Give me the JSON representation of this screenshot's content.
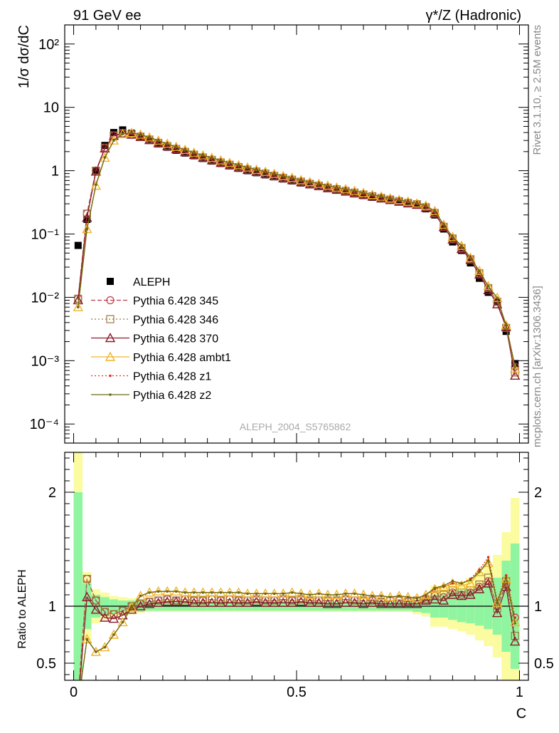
{
  "header": {
    "left": "91 GeV ee",
    "right": "γ*/Z (Hadronic)"
  },
  "side_text": {
    "rivet": "Rivet 3.1.10, ≥ 2.5M events",
    "site": "mcplots.cern.ch [arXiv:1306.3436]"
  },
  "watermark": "ALEPH_2004_S5765862",
  "colors": {
    "data": "#000000",
    "p345": "#c0394b",
    "p346": "#9b7a3c",
    "p370": "#8b1a2b",
    "ambt1": "#f0b429",
    "z1": "#e03020",
    "z2": "#6b6b10",
    "band_inner": "#90f5a0",
    "band_outer": "#fbfba0"
  },
  "chart_data": [
    {
      "type": "line",
      "panel": "main",
      "ylabel": "1/σ  dσ/dC",
      "yscale": "log",
      "ylim": [
        5e-05,
        200
      ],
      "xlim": [
        -0.02,
        1.02
      ],
      "ytick_labels": [
        "10⁻⁴",
        "10⁻³",
        "10⁻²",
        "10⁻¹",
        "1",
        "10",
        "10²"
      ],
      "legend_position": "center-left",
      "legend": [
        {
          "label": "ALEPH",
          "key": "data",
          "marker": "square",
          "line": "none"
        },
        {
          "label": "Pythia 6.428 345",
          "key": "p345",
          "marker": "circle",
          "line": "dashed"
        },
        {
          "label": "Pythia 6.428 346",
          "key": "p346",
          "marker": "square-open",
          "line": "dotted"
        },
        {
          "label": "Pythia 6.428 370",
          "key": "p370",
          "marker": "triangle",
          "line": "solid"
        },
        {
          "label": "Pythia 6.428 ambt1",
          "key": "ambt1",
          "marker": "triangle",
          "line": "solid"
        },
        {
          "label": "Pythia 6.428 z1",
          "key": "z1",
          "marker": "dot",
          "line": "dotted"
        },
        {
          "label": "Pythia 6.428 z2",
          "key": "z2",
          "marker": "dot",
          "line": "solid"
        }
      ],
      "x": [
        0.01,
        0.03,
        0.05,
        0.07,
        0.09,
        0.11,
        0.13,
        0.15,
        0.17,
        0.19,
        0.21,
        0.23,
        0.25,
        0.27,
        0.29,
        0.31,
        0.33,
        0.35,
        0.37,
        0.39,
        0.41,
        0.43,
        0.45,
        0.47,
        0.49,
        0.51,
        0.53,
        0.55,
        0.57,
        0.59,
        0.61,
        0.63,
        0.65,
        0.67,
        0.69,
        0.71,
        0.73,
        0.75,
        0.77,
        0.79,
        0.81,
        0.83,
        0.85,
        0.87,
        0.89,
        0.91,
        0.93,
        0.95,
        0.97,
        0.99
      ],
      "data": [
        0.066,
        0.17,
        1.0,
        2.5,
        4.0,
        4.4,
        3.9,
        3.4,
        3.0,
        2.65,
        2.35,
        2.1,
        1.9,
        1.72,
        1.56,
        1.42,
        1.3,
        1.19,
        1.09,
        1.0,
        0.93,
        0.86,
        0.8,
        0.74,
        0.69,
        0.64,
        0.6,
        0.56,
        0.52,
        0.49,
        0.46,
        0.43,
        0.405,
        0.38,
        0.36,
        0.34,
        0.32,
        0.3,
        0.285,
        0.25,
        0.2,
        0.12,
        0.075,
        0.055,
        0.035,
        0.02,
        0.012,
        0.0085,
        0.0029,
        0.0009
      ],
      "series": [
        {
          "name": "Pythia 6.428 345",
          "key": "p345",
          "values": [
            0.0095,
            0.21,
            1.0,
            2.3,
            3.6,
            3.9,
            3.75,
            3.45,
            3.1,
            2.75,
            2.45,
            2.2,
            1.98,
            1.79,
            1.62,
            1.48,
            1.35,
            1.24,
            1.14,
            1.04,
            0.97,
            0.9,
            0.83,
            0.77,
            0.72,
            0.67,
            0.62,
            0.58,
            0.54,
            0.51,
            0.48,
            0.45,
            0.42,
            0.395,
            0.37,
            0.35,
            0.33,
            0.31,
            0.295,
            0.265,
            0.215,
            0.13,
            0.085,
            0.06,
            0.04,
            0.024,
            0.014,
            0.0085,
            0.0033,
            0.0008
          ]
        },
        {
          "name": "Pythia 6.428 346",
          "key": "p346",
          "values": [
            0.0095,
            0.21,
            1.0,
            2.3,
            3.6,
            3.9,
            3.75,
            3.45,
            3.1,
            2.75,
            2.45,
            2.2,
            1.98,
            1.79,
            1.62,
            1.48,
            1.35,
            1.24,
            1.14,
            1.04,
            0.97,
            0.9,
            0.83,
            0.77,
            0.72,
            0.67,
            0.62,
            0.58,
            0.54,
            0.51,
            0.48,
            0.45,
            0.42,
            0.395,
            0.37,
            0.35,
            0.33,
            0.31,
            0.295,
            0.265,
            0.215,
            0.13,
            0.085,
            0.06,
            0.04,
            0.024,
            0.014,
            0.0085,
            0.0033,
            0.00065
          ]
        },
        {
          "name": "Pythia 6.428 370",
          "key": "p370",
          "values": [
            0.009,
            0.18,
            0.97,
            2.25,
            3.55,
            3.85,
            3.7,
            3.4,
            3.05,
            2.72,
            2.43,
            2.18,
            1.96,
            1.77,
            1.6,
            1.46,
            1.33,
            1.22,
            1.12,
            1.03,
            0.96,
            0.89,
            0.82,
            0.76,
            0.71,
            0.66,
            0.61,
            0.57,
            0.53,
            0.5,
            0.47,
            0.44,
            0.415,
            0.39,
            0.365,
            0.345,
            0.325,
            0.305,
            0.29,
            0.26,
            0.21,
            0.128,
            0.082,
            0.058,
            0.039,
            0.023,
            0.013,
            0.0078,
            0.0034,
            0.00058
          ]
        },
        {
          "name": "Pythia 6.428 ambt1",
          "key": "ambt1",
          "values": [
            0.007,
            0.12,
            0.58,
            1.6,
            3.0,
            3.8,
            3.95,
            3.7,
            3.35,
            2.98,
            2.65,
            2.37,
            2.13,
            1.92,
            1.74,
            1.59,
            1.45,
            1.33,
            1.22,
            1.12,
            1.03,
            0.96,
            0.89,
            0.82,
            0.77,
            0.71,
            0.66,
            0.62,
            0.58,
            0.54,
            0.51,
            0.48,
            0.445,
            0.415,
            0.39,
            0.365,
            0.345,
            0.325,
            0.305,
            0.28,
            0.23,
            0.14,
            0.09,
            0.065,
            0.042,
            0.026,
            0.015,
            0.0098,
            0.0036,
            0.00075
          ]
        },
        {
          "name": "Pythia 6.428 z1",
          "key": "z1",
          "values": [
            0.007,
            0.12,
            0.6,
            1.62,
            3.0,
            3.8,
            3.95,
            3.7,
            3.35,
            2.98,
            2.65,
            2.37,
            2.13,
            1.92,
            1.74,
            1.59,
            1.45,
            1.33,
            1.22,
            1.12,
            1.03,
            0.96,
            0.89,
            0.82,
            0.77,
            0.71,
            0.66,
            0.62,
            0.58,
            0.54,
            0.51,
            0.48,
            0.445,
            0.415,
            0.39,
            0.365,
            0.345,
            0.325,
            0.305,
            0.28,
            0.23,
            0.14,
            0.09,
            0.065,
            0.042,
            0.026,
            0.015,
            0.0098,
            0.0036,
            0.0008
          ]
        },
        {
          "name": "Pythia 6.428 z2",
          "key": "z2",
          "values": [
            0.007,
            0.12,
            0.6,
            1.62,
            3.0,
            3.8,
            3.95,
            3.7,
            3.35,
            2.98,
            2.65,
            2.37,
            2.13,
            1.92,
            1.74,
            1.59,
            1.45,
            1.33,
            1.22,
            1.12,
            1.03,
            0.96,
            0.89,
            0.82,
            0.77,
            0.71,
            0.66,
            0.62,
            0.58,
            0.54,
            0.51,
            0.48,
            0.445,
            0.415,
            0.39,
            0.365,
            0.345,
            0.325,
            0.305,
            0.28,
            0.23,
            0.14,
            0.09,
            0.065,
            0.042,
            0.026,
            0.015,
            0.0098,
            0.0036,
            0.0008
          ]
        }
      ]
    },
    {
      "type": "line",
      "panel": "ratio",
      "xlabel": "C",
      "ylabel": "Ratio to ALEPH",
      "ylim": [
        0.35,
        2.35
      ],
      "xlim": [
        -0.02,
        1.02
      ],
      "ytick_labels": [
        "0.5",
        "1",
        "2"
      ],
      "xtick_labels": [
        "0",
        "0.5",
        "1"
      ],
      "reference": 1,
      "band_inner": [
        1.0,
        0.2,
        0.1,
        0.08,
        0.06,
        0.05,
        0.05,
        0.05,
        0.04,
        0.04,
        0.04,
        0.04,
        0.04,
        0.04,
        0.04,
        0.04,
        0.04,
        0.04,
        0.04,
        0.04,
        0.04,
        0.04,
        0.04,
        0.04,
        0.04,
        0.04,
        0.04,
        0.04,
        0.04,
        0.04,
        0.04,
        0.04,
        0.04,
        0.04,
        0.04,
        0.04,
        0.04,
        0.04,
        0.05,
        0.06,
        0.1,
        0.1,
        0.12,
        0.14,
        0.15,
        0.17,
        0.2,
        0.25,
        0.4,
        0.55
      ],
      "band_outer": [
        1.35,
        0.3,
        0.15,
        0.12,
        0.09,
        0.08,
        0.07,
        0.06,
        0.05,
        0.05,
        0.05,
        0.05,
        0.05,
        0.05,
        0.05,
        0.05,
        0.05,
        0.05,
        0.05,
        0.05,
        0.05,
        0.05,
        0.05,
        0.05,
        0.05,
        0.05,
        0.05,
        0.05,
        0.05,
        0.05,
        0.05,
        0.05,
        0.05,
        0.05,
        0.05,
        0.05,
        0.05,
        0.05,
        0.07,
        0.09,
        0.18,
        0.18,
        0.2,
        0.22,
        0.25,
        0.3,
        0.35,
        0.45,
        0.65,
        0.95
      ],
      "series": [
        {
          "name": "Pythia 6.428 345",
          "key": "p345",
          "values": [
            0.2,
            1.24,
            1.05,
            0.95,
            0.93,
            0.96,
            1.0,
            1.02,
            1.04,
            1.05,
            1.06,
            1.05,
            1.06,
            1.05,
            1.05,
            1.06,
            1.05,
            1.06,
            1.05,
            1.05,
            1.06,
            1.05,
            1.05,
            1.06,
            1.05,
            1.06,
            1.05,
            1.05,
            1.05,
            1.05,
            1.06,
            1.05,
            1.05,
            1.05,
            1.04,
            1.05,
            1.05,
            1.04,
            1.05,
            1.06,
            1.09,
            1.08,
            1.12,
            1.1,
            1.12,
            1.17,
            1.22,
            1.0,
            1.19,
            0.9
          ]
        },
        {
          "name": "Pythia 6.428 346",
          "key": "p346",
          "values": [
            0.2,
            1.24,
            1.05,
            0.95,
            0.93,
            0.96,
            1.0,
            1.02,
            1.04,
            1.05,
            1.06,
            1.05,
            1.06,
            1.05,
            1.05,
            1.06,
            1.05,
            1.06,
            1.05,
            1.05,
            1.06,
            1.05,
            1.05,
            1.06,
            1.05,
            1.06,
            1.05,
            1.05,
            1.05,
            1.05,
            1.06,
            1.05,
            1.05,
            1.05,
            1.04,
            1.05,
            1.05,
            1.04,
            1.05,
            1.06,
            1.1,
            1.1,
            1.14,
            1.12,
            1.14,
            1.19,
            1.25,
            0.98,
            1.22,
            0.74
          ]
        },
        {
          "name": "Pythia 6.428 370",
          "key": "p370",
          "values": [
            0.15,
            1.08,
            0.97,
            0.9,
            0.89,
            0.92,
            0.97,
            1.0,
            1.02,
            1.03,
            1.04,
            1.04,
            1.04,
            1.03,
            1.03,
            1.03,
            1.03,
            1.03,
            1.03,
            1.03,
            1.04,
            1.03,
            1.03,
            1.03,
            1.03,
            1.04,
            1.03,
            1.03,
            1.02,
            1.02,
            1.03,
            1.03,
            1.02,
            1.03,
            1.02,
            1.02,
            1.02,
            1.02,
            1.02,
            1.05,
            1.06,
            1.05,
            1.1,
            1.09,
            1.1,
            1.15,
            1.2,
            0.94,
            1.17,
            0.69
          ]
        },
        {
          "name": "Pythia 6.428 ambt1",
          "key": "ambt1",
          "values": [
            0.15,
            0.71,
            0.6,
            0.64,
            0.75,
            0.86,
            0.99,
            1.09,
            1.12,
            1.13,
            1.13,
            1.13,
            1.12,
            1.12,
            1.12,
            1.12,
            1.12,
            1.12,
            1.12,
            1.11,
            1.11,
            1.11,
            1.11,
            1.11,
            1.12,
            1.11,
            1.1,
            1.11,
            1.1,
            1.1,
            1.11,
            1.11,
            1.1,
            1.09,
            1.09,
            1.08,
            1.09,
            1.08,
            1.07,
            1.1,
            1.15,
            1.17,
            1.2,
            1.18,
            1.2,
            1.3,
            1.38,
            1.03,
            1.24,
            0.86
          ]
        },
        {
          "name": "Pythia 6.428 z1",
          "key": "z1",
          "values": [
            0.15,
            0.71,
            0.6,
            0.64,
            0.75,
            0.86,
            0.99,
            1.09,
            1.12,
            1.13,
            1.13,
            1.13,
            1.12,
            1.12,
            1.12,
            1.12,
            1.12,
            1.12,
            1.12,
            1.11,
            1.11,
            1.11,
            1.11,
            1.11,
            1.12,
            1.11,
            1.1,
            1.11,
            1.1,
            1.1,
            1.11,
            1.11,
            1.1,
            1.09,
            1.09,
            1.08,
            1.09,
            1.08,
            1.07,
            1.1,
            1.15,
            1.17,
            1.2,
            1.2,
            1.24,
            1.32,
            1.43,
            1.05,
            1.27,
            0.9
          ]
        },
        {
          "name": "Pythia 6.428 z2",
          "key": "z2",
          "values": [
            0.15,
            0.71,
            0.6,
            0.64,
            0.75,
            0.86,
            0.99,
            1.09,
            1.12,
            1.13,
            1.13,
            1.13,
            1.12,
            1.12,
            1.12,
            1.12,
            1.12,
            1.12,
            1.12,
            1.11,
            1.11,
            1.11,
            1.11,
            1.11,
            1.12,
            1.11,
            1.1,
            1.11,
            1.1,
            1.1,
            1.11,
            1.11,
            1.1,
            1.09,
            1.09,
            1.08,
            1.09,
            1.08,
            1.07,
            1.1,
            1.16,
            1.18,
            1.22,
            1.2,
            1.23,
            1.3,
            1.4,
            1.03,
            1.25,
            0.85
          ]
        }
      ]
    }
  ]
}
